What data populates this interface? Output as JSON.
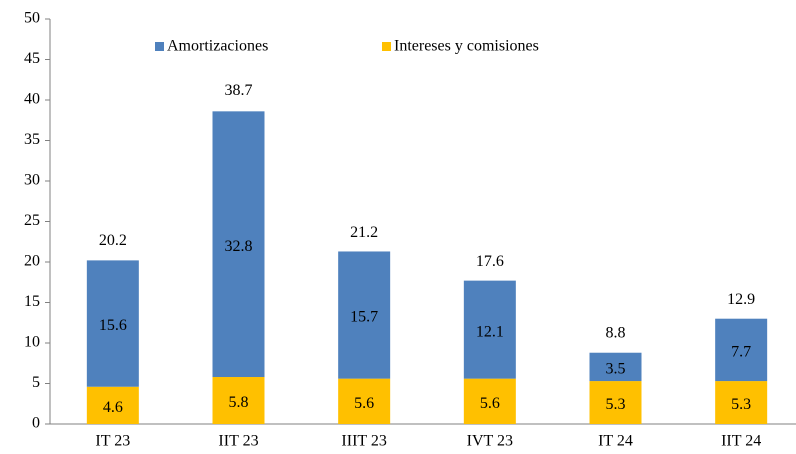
{
  "chart_data": {
    "type": "stacked_bar",
    "categories": [
      "IT 23",
      "IIT 23",
      "IIIT 23",
      "IVT 23",
      "IT 24",
      "IIT 24"
    ],
    "series": [
      {
        "name": "Intereses y comisiones",
        "color": "#ffc000",
        "values": [
          4.6,
          5.8,
          5.6,
          5.6,
          5.3,
          5.3
        ]
      },
      {
        "name": "Amortizaciones",
        "color": "#4f81bd",
        "values": [
          15.6,
          32.8,
          15.7,
          12.1,
          3.5,
          7.7
        ]
      }
    ],
    "totals": [
      20.2,
      38.7,
      21.2,
      17.6,
      8.8,
      12.9
    ],
    "ylim": [
      0,
      50
    ],
    "yticks": [
      0,
      5,
      10,
      15,
      20,
      25,
      30,
      35,
      40,
      45,
      50
    ],
    "grid": false
  }
}
